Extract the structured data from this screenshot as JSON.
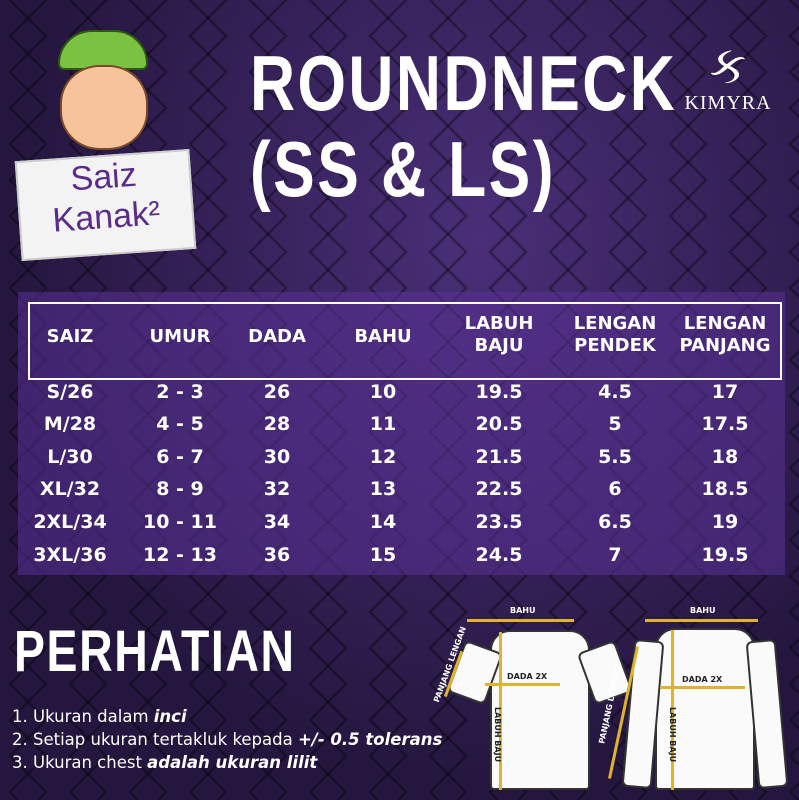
{
  "title": [
    "ROUNDNECK",
    "(SS & LS)"
  ],
  "brand": {
    "mark": "ક",
    "name": "KIMYRA"
  },
  "badge": {
    "line1": "Saiz",
    "line2": "Kanak²"
  },
  "table": {
    "headers": [
      [
        "SAIZ"
      ],
      [
        "UMUR"
      ],
      [
        "DADA"
      ],
      [
        "BAHU"
      ],
      [
        "LABUH",
        "BAJU"
      ],
      [
        "LENGAN",
        "PENDEK"
      ],
      [
        "LENGAN",
        "PANJANG"
      ]
    ],
    "rows": [
      [
        "S/26",
        "2 - 3",
        "26",
        "10",
        "19.5",
        "4.5",
        "17"
      ],
      [
        "M/28",
        "4 - 5",
        "28",
        "11",
        "20.5",
        "5",
        "17.5"
      ],
      [
        "L/30",
        "6 - 7",
        "30",
        "12",
        "21.5",
        "5.5",
        "18"
      ],
      [
        "XL/32",
        "8 - 9",
        "32",
        "13",
        "22.5",
        "6",
        "18.5"
      ],
      [
        "2XL/34",
        "10 - 11",
        "34",
        "14",
        "23.5",
        "6.5",
        "19"
      ],
      [
        "3XL/36",
        "12 - 13",
        "36",
        "15",
        "24.5",
        "7",
        "19.5"
      ]
    ]
  },
  "notice": {
    "heading": "PERHATIAN",
    "notes": [
      {
        "text": "1. Ukuran dalam ",
        "bold": "inci"
      },
      {
        "text": "2. Setiap ukuran tertakluk kepada ",
        "bold": "+/- 0.5 tolerans"
      },
      {
        "text": "3. Ukuran chest ",
        "bold": "adalah ukuran lilit"
      }
    ]
  },
  "diagram": {
    "bahu": "BAHU",
    "dada": "DADA 2X",
    "labuh": "LABUH BAJU",
    "panjang_lengan": "PANJANG LENGAN",
    "accent": "#e0b32c"
  }
}
